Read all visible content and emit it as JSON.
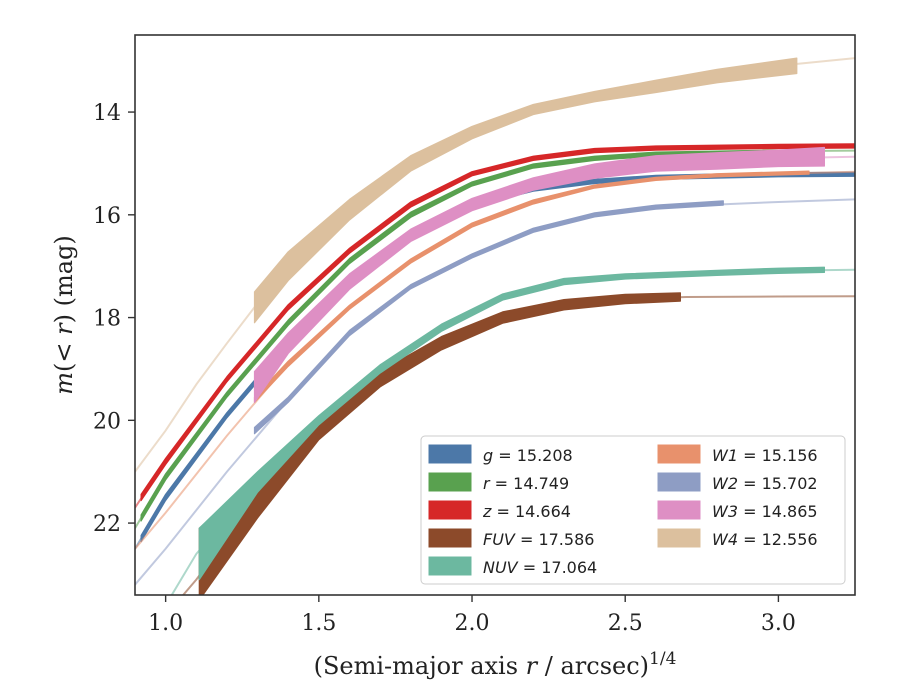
{
  "chart_data": {
    "type": "line",
    "title": "",
    "xlabel": {
      "pre": "(Semi-major axis ",
      "var": "r",
      "post": " / arcsec)",
      "sup": "1/4"
    },
    "ylabel": {
      "pre": "m(< ",
      "var": "r",
      "post": ") (mag)"
    },
    "xlim": [
      0.9,
      3.25
    ],
    "ylim": [
      23.4,
      12.5
    ],
    "y_inverted": true,
    "xticks": [
      1.0,
      1.5,
      2.0,
      2.5,
      3.0
    ],
    "xtick_labels": [
      "1.0",
      "1.5",
      "2.0",
      "2.5",
      "3.0"
    ],
    "yticks": [
      14,
      16,
      18,
      20,
      22
    ],
    "ytick_labels": [
      "14",
      "16",
      "18",
      "20",
      "22"
    ],
    "grid": false,
    "legend_position": "bottom-right",
    "legend_columns": 2,
    "series": [
      {
        "name": "g = 15.208",
        "band": "g",
        "total": "15.208",
        "color": "#4c78a8",
        "model": [
          [
            0.9,
            22.5
          ],
          [
            1.0,
            21.5
          ],
          [
            1.2,
            19.9
          ],
          [
            1.4,
            18.5
          ],
          [
            1.6,
            17.3
          ],
          [
            1.8,
            16.4
          ],
          [
            2.0,
            15.8
          ],
          [
            2.2,
            15.5
          ],
          [
            2.4,
            15.35
          ],
          [
            2.6,
            15.27
          ],
          [
            3.0,
            15.22
          ],
          [
            3.25,
            15.21
          ]
        ],
        "measured": [
          [
            0.92,
            22.3
          ],
          [
            1.0,
            21.5
          ],
          [
            1.2,
            19.9
          ],
          [
            1.4,
            18.5
          ],
          [
            1.6,
            17.3
          ],
          [
            1.8,
            16.4
          ],
          [
            2.0,
            15.8
          ],
          [
            2.2,
            15.5
          ],
          [
            2.4,
            15.35
          ],
          [
            2.6,
            15.27
          ],
          [
            3.0,
            15.22
          ],
          [
            3.25,
            15.21
          ]
        ],
        "band_halfwidth": [
          0.06,
          0.06,
          0.05,
          0.05,
          0.05,
          0.05,
          0.04,
          0.04,
          0.04,
          0.04,
          0.04,
          0.04
        ]
      },
      {
        "name": "r = 14.749",
        "band": "r",
        "total": "14.749",
        "color": "#59a14f",
        "model": [
          [
            0.9,
            22.1
          ],
          [
            1.0,
            21.1
          ],
          [
            1.2,
            19.5
          ],
          [
            1.4,
            18.1
          ],
          [
            1.6,
            16.9
          ],
          [
            1.8,
            16.0
          ],
          [
            2.0,
            15.4
          ],
          [
            2.2,
            15.05
          ],
          [
            2.4,
            14.9
          ],
          [
            2.6,
            14.82
          ],
          [
            3.0,
            14.76
          ],
          [
            3.25,
            14.75
          ]
        ],
        "measured": [
          [
            0.92,
            21.9
          ],
          [
            1.0,
            21.1
          ],
          [
            1.2,
            19.5
          ],
          [
            1.4,
            18.1
          ],
          [
            1.6,
            16.9
          ],
          [
            1.8,
            16.0
          ],
          [
            2.0,
            15.4
          ],
          [
            2.2,
            15.05
          ],
          [
            2.4,
            14.9
          ],
          [
            2.6,
            14.82
          ],
          [
            3.0,
            14.78
          ],
          [
            3.15,
            14.77
          ]
        ],
        "band_halfwidth": [
          0.06,
          0.06,
          0.05,
          0.05,
          0.05,
          0.05,
          0.04,
          0.04,
          0.04,
          0.04,
          0.04,
          0.04
        ]
      },
      {
        "name": "z = 14.664",
        "band": "z",
        "total": "14.664",
        "color": "#d62728",
        "model": [
          [
            0.9,
            21.7
          ],
          [
            1.0,
            20.8
          ],
          [
            1.2,
            19.2
          ],
          [
            1.4,
            17.8
          ],
          [
            1.6,
            16.7
          ],
          [
            1.8,
            15.8
          ],
          [
            2.0,
            15.2
          ],
          [
            2.2,
            14.9
          ],
          [
            2.4,
            14.75
          ],
          [
            2.6,
            14.7
          ],
          [
            3.0,
            14.67
          ],
          [
            3.25,
            14.66
          ]
        ],
        "measured": [
          [
            0.92,
            21.5
          ],
          [
            1.0,
            20.8
          ],
          [
            1.2,
            19.2
          ],
          [
            1.4,
            17.8
          ],
          [
            1.6,
            16.7
          ],
          [
            1.8,
            15.8
          ],
          [
            2.0,
            15.2
          ],
          [
            2.2,
            14.9
          ],
          [
            2.4,
            14.75
          ],
          [
            2.6,
            14.7
          ],
          [
            3.0,
            14.67
          ],
          [
            3.25,
            14.66
          ]
        ],
        "band_halfwidth": [
          0.06,
          0.06,
          0.05,
          0.05,
          0.05,
          0.05,
          0.04,
          0.04,
          0.04,
          0.04,
          0.04,
          0.04
        ]
      },
      {
        "name": "FUV = 17.586",
        "band": "FUV",
        "total": "17.586",
        "color": "#8c4a2a",
        "model": [
          [
            0.9,
            24.2
          ],
          [
            1.0,
            23.8
          ],
          [
            1.1,
            23.1
          ],
          [
            1.3,
            21.5
          ],
          [
            1.5,
            20.2
          ],
          [
            1.7,
            19.2
          ],
          [
            1.9,
            18.5
          ],
          [
            2.1,
            18.0
          ],
          [
            2.3,
            17.75
          ],
          [
            2.5,
            17.64
          ],
          [
            2.7,
            17.6
          ],
          [
            3.0,
            17.59
          ],
          [
            3.25,
            17.586
          ]
        ],
        "measured": [
          [
            1.11,
            22.8
          ],
          [
            1.3,
            21.5
          ],
          [
            1.5,
            20.2
          ],
          [
            1.7,
            19.2
          ],
          [
            1.9,
            18.5
          ],
          [
            2.1,
            18.0
          ],
          [
            2.3,
            17.75
          ],
          [
            2.5,
            17.64
          ],
          [
            2.68,
            17.6
          ]
        ],
        "band_halfwidth": [
          0.7,
          0.4,
          0.18,
          0.15,
          0.13,
          0.11,
          0.1,
          0.09,
          0.08
        ]
      },
      {
        "name": "NUV = 17.064",
        "band": "NUV",
        "total": "17.064",
        "color": "#6cb8a0",
        "model": [
          [
            0.9,
            24.0
          ],
          [
            1.0,
            23.6
          ],
          [
            1.1,
            22.6
          ],
          [
            1.3,
            21.2
          ],
          [
            1.5,
            20.0
          ],
          [
            1.7,
            19.0
          ],
          [
            1.9,
            18.2
          ],
          [
            2.1,
            17.6
          ],
          [
            2.3,
            17.3
          ],
          [
            2.5,
            17.2
          ],
          [
            2.8,
            17.13
          ],
          [
            3.0,
            17.09
          ],
          [
            3.25,
            17.07
          ]
        ],
        "measured": [
          [
            1.11,
            22.6
          ],
          [
            1.3,
            21.2
          ],
          [
            1.5,
            20.0
          ],
          [
            1.7,
            19.0
          ],
          [
            1.9,
            18.2
          ],
          [
            2.1,
            17.6
          ],
          [
            2.3,
            17.3
          ],
          [
            2.5,
            17.2
          ],
          [
            2.8,
            17.13
          ],
          [
            3.0,
            17.09
          ],
          [
            3.15,
            17.07
          ]
        ],
        "band_halfwidth": [
          0.5,
          0.2,
          0.09,
          0.08,
          0.07,
          0.06,
          0.06,
          0.05,
          0.05,
          0.05,
          0.05
        ]
      },
      {
        "name": "W1 = 15.156",
        "band": "W1",
        "total": "15.156",
        "color": "#e8916c",
        "model": [
          [
            0.9,
            22.5
          ],
          [
            1.0,
            21.8
          ],
          [
            1.2,
            20.3
          ],
          [
            1.4,
            18.9
          ],
          [
            1.6,
            17.8
          ],
          [
            1.8,
            16.9
          ],
          [
            2.0,
            16.2
          ],
          [
            2.2,
            15.75
          ],
          [
            2.4,
            15.45
          ],
          [
            2.6,
            15.3
          ],
          [
            3.0,
            15.2
          ],
          [
            3.25,
            15.16
          ]
        ],
        "measured": [
          [
            1.29,
            19.6
          ],
          [
            1.4,
            18.9
          ],
          [
            1.6,
            17.8
          ],
          [
            1.8,
            16.9
          ],
          [
            2.0,
            16.2
          ],
          [
            2.2,
            15.75
          ],
          [
            2.4,
            15.45
          ],
          [
            2.6,
            15.3
          ],
          [
            2.8,
            15.23
          ],
          [
            3.1,
            15.18
          ]
        ],
        "band_halfwidth": [
          0.05,
          0.05,
          0.04,
          0.04,
          0.04,
          0.04,
          0.03,
          0.03,
          0.03,
          0.03
        ]
      },
      {
        "name": "W2 = 15.702",
        "band": "W2",
        "total": "15.702",
        "color": "#8e9dc4",
        "model": [
          [
            0.9,
            23.2
          ],
          [
            1.0,
            22.5
          ],
          [
            1.2,
            21.0
          ],
          [
            1.4,
            19.6
          ],
          [
            1.6,
            18.3
          ],
          [
            1.8,
            17.4
          ],
          [
            2.0,
            16.8
          ],
          [
            2.2,
            16.3
          ],
          [
            2.4,
            16.0
          ],
          [
            2.6,
            15.85
          ],
          [
            3.0,
            15.75
          ],
          [
            3.25,
            15.7
          ]
        ],
        "measured": [
          [
            1.29,
            20.2
          ],
          [
            1.4,
            19.6
          ],
          [
            1.6,
            18.3
          ],
          [
            1.8,
            17.4
          ],
          [
            2.0,
            16.8
          ],
          [
            2.2,
            16.3
          ],
          [
            2.4,
            16.0
          ],
          [
            2.6,
            15.85
          ],
          [
            2.82,
            15.77
          ]
        ],
        "band_halfwidth": [
          0.06,
          0.05,
          0.05,
          0.04,
          0.04,
          0.04,
          0.04,
          0.04,
          0.04
        ]
      },
      {
        "name": "W3 = 14.865",
        "band": "W3",
        "total": "14.865",
        "color": "#de8fc4",
        "model": [
          [
            1.29,
            19.35
          ],
          [
            1.4,
            18.5
          ],
          [
            1.6,
            17.3
          ],
          [
            1.8,
            16.4
          ],
          [
            2.0,
            15.8
          ],
          [
            2.2,
            15.4
          ],
          [
            2.4,
            15.15
          ],
          [
            2.6,
            15.0
          ],
          [
            2.8,
            14.95
          ],
          [
            3.0,
            14.9
          ],
          [
            3.25,
            14.87
          ]
        ],
        "measured": [
          [
            1.29,
            19.35
          ],
          [
            1.4,
            18.5
          ],
          [
            1.6,
            17.3
          ],
          [
            1.8,
            16.4
          ],
          [
            2.0,
            15.8
          ],
          [
            2.2,
            15.4
          ],
          [
            2.4,
            15.15
          ],
          [
            2.6,
            15.0
          ],
          [
            2.8,
            14.95
          ],
          [
            3.0,
            14.9
          ],
          [
            3.15,
            14.87
          ]
        ],
        "band_halfwidth": [
          0.3,
          0.2,
          0.15,
          0.12,
          0.12,
          0.12,
          0.14,
          0.15,
          0.16,
          0.16,
          0.18
        ]
      },
      {
        "name": "W4 = 12.556",
        "band": "W4",
        "total": "12.556",
        "color": "#dcc09e",
        "model": [
          [
            0.9,
            21.0
          ],
          [
            1.0,
            20.2
          ],
          [
            1.1,
            19.3
          ],
          [
            1.2,
            18.5
          ],
          [
            1.29,
            17.8
          ],
          [
            1.4,
            17.0
          ],
          [
            1.6,
            15.9
          ],
          [
            1.8,
            15.0
          ],
          [
            2.0,
            14.4
          ],
          [
            2.2,
            13.95
          ],
          [
            2.4,
            13.7
          ],
          [
            2.6,
            13.5
          ],
          [
            2.8,
            13.3
          ],
          [
            3.0,
            13.1
          ],
          [
            3.25,
            12.95
          ]
        ],
        "measured": [
          [
            1.29,
            17.8
          ],
          [
            1.4,
            17.0
          ],
          [
            1.6,
            15.9
          ],
          [
            1.8,
            15.0
          ],
          [
            2.0,
            14.4
          ],
          [
            2.2,
            13.95
          ],
          [
            2.4,
            13.7
          ],
          [
            2.6,
            13.5
          ],
          [
            2.8,
            13.3
          ],
          [
            3.06,
            13.1
          ]
        ],
        "band_halfwidth": [
          0.3,
          0.28,
          0.2,
          0.15,
          0.12,
          0.1,
          0.1,
          0.12,
          0.13,
          0.15
        ]
      }
    ]
  }
}
